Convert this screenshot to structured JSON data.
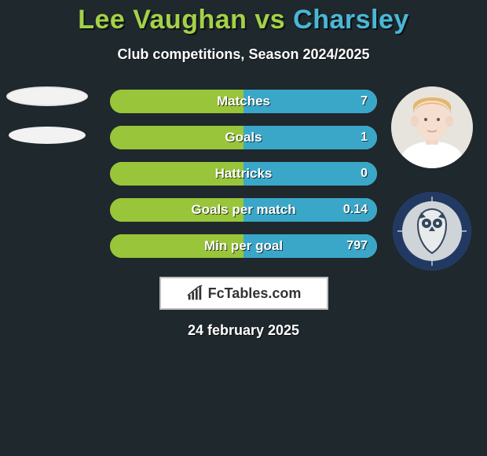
{
  "background_color": "#1e282d",
  "title": {
    "player1": "Lee Vaughan",
    "vs": "vs",
    "player2": "Charsley",
    "color_player1": "#a4d147",
    "color_vs": "#a4d147",
    "color_player2": "#4ab7d6",
    "fontsize": 34
  },
  "subtitle": {
    "text": "Club competitions, Season 2024/2025",
    "fontsize": 18
  },
  "bar_style": {
    "height": 30,
    "gap": 16,
    "radius": 16,
    "track_color": "#98c53a",
    "left_fill_color": "#98c53a",
    "right_fill_color": "#3aa7c9",
    "label_fontsize": 17,
    "value_fontsize": 16
  },
  "rows": [
    {
      "label": "Matches",
      "left_pct": 50,
      "right_pct": 50,
      "left_value": "",
      "right_value": "7"
    },
    {
      "label": "Goals",
      "left_pct": 50,
      "right_pct": 50,
      "left_value": "",
      "right_value": "1"
    },
    {
      "label": "Hattricks",
      "left_pct": 50,
      "right_pct": 50,
      "left_value": "",
      "right_value": "0"
    },
    {
      "label": "Goals per match",
      "left_pct": 50,
      "right_pct": 50,
      "left_value": "",
      "right_value": "0.14"
    },
    {
      "label": "Min per goal",
      "left_pct": 50,
      "right_pct": 50,
      "left_value": "",
      "right_value": "797"
    }
  ],
  "left_player": {
    "avatar_placeholder": true
  },
  "right_player": {
    "avatar_bg": "#e7e3dd",
    "skin": "#f3d9c9",
    "hair": "#e7b96a",
    "shirt": "#ffffff"
  },
  "right_crest": {
    "outer": "#223a63",
    "inner": "#cfd4d8",
    "owl_body": "#e9eaec",
    "owl_dark": "#33475c"
  },
  "branding": {
    "text": "FcTables.com",
    "bg": "#ffffff",
    "border": "#bdbdbd",
    "text_color": "#333333",
    "icon_color": "#333333"
  },
  "date": "24 february 2025"
}
